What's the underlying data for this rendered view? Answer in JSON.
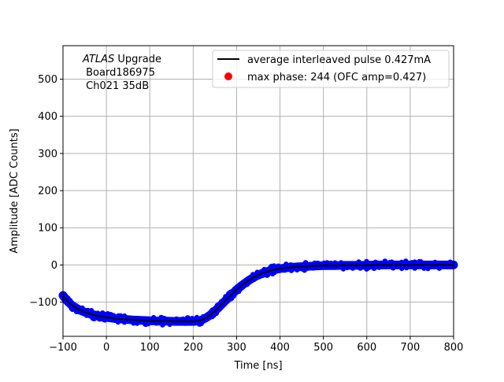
{
  "chart_data": {
    "type": "line",
    "xlabel": "Time [ns]",
    "ylabel": "Amplitude [ADC Counts]",
    "xlim": [
      -100,
      800
    ],
    "ylim": [
      -192,
      590
    ],
    "xticks": [
      -100,
      0,
      100,
      200,
      300,
      400,
      500,
      600,
      700,
      800
    ],
    "yticks": [
      -100,
      0,
      100,
      200,
      300,
      400,
      500
    ],
    "x_tick_labels": [
      "−100",
      "0",
      "100",
      "200",
      "300",
      "400",
      "500",
      "600",
      "700",
      "800"
    ],
    "y_tick_labels": [
      "−100",
      "0",
      "100",
      "200",
      "300",
      "400",
      "500"
    ],
    "grid": true,
    "legend_position": "top-right",
    "annotation": {
      "italic": "ATLAS",
      "line1_rest": " Upgrade",
      "line2": " Board186975",
      "line3": " Ch021 35dB"
    },
    "series": [
      {
        "name": "average interleaved pulse 0.427mA",
        "kind": "line",
        "color": "#000000",
        "x": [
          -100,
          -90,
          -80,
          -70,
          -60,
          -50,
          -40,
          -30,
          -20,
          -10,
          0,
          20,
          40,
          60,
          80,
          100,
          120,
          140,
          160,
          180,
          200,
          210,
          220,
          230,
          240,
          250,
          260,
          270,
          280,
          290,
          300,
          310,
          320,
          330,
          340,
          350,
          360,
          370,
          380,
          390,
          400,
          420,
          440,
          460,
          480,
          500,
          525,
          550,
          575,
          600,
          625,
          650,
          675,
          700,
          725,
          750,
          775,
          800
        ],
        "y": [
          -82,
          -97,
          -108,
          -116,
          -122,
          -127,
          -131,
          -134,
          -137,
          -139,
          -141,
          -144,
          -146,
          -148,
          -149,
          -150,
          -151,
          -151,
          -152,
          -152,
          -152,
          -151,
          -148,
          -142,
          -134,
          -124,
          -113,
          -101,
          -89,
          -78,
          -67,
          -57,
          -48,
          -40,
          -33,
          -27,
          -22,
          -18,
          -14,
          -12,
          -10,
          -7,
          -5,
          -4,
          -3,
          -2,
          -2,
          -1,
          -1,
          -1,
          0,
          0,
          0,
          0,
          0,
          0,
          0,
          0
        ]
      },
      {
        "name": "max phase: 244 (OFC amp=0.427)",
        "kind": "marker",
        "color": "#ff0000"
      }
    ],
    "band": {
      "color": "#0000ff",
      "note": "scattered interleaved samples around the average pulse"
    }
  }
}
